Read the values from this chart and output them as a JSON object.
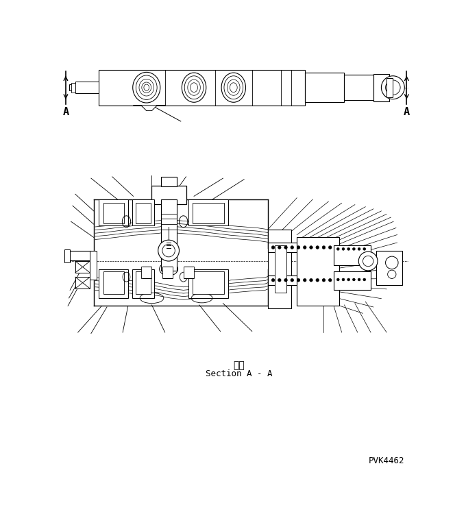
{
  "background_color": "#ffffff",
  "line_color": "#000000",
  "label_A_left": "A",
  "label_A_right": "A",
  "section_label_jp": "断面",
  "section_label_en": "Section A - A",
  "part_number": "PVK4462",
  "fig_width": 6.8,
  "fig_height": 7.69,
  "dpi": 100
}
